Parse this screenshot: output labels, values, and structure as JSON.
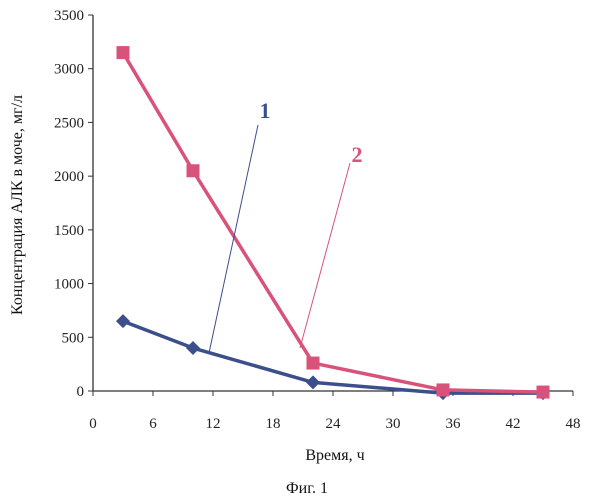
{
  "chart_data": {
    "type": "line",
    "caption": "Фиг. 1",
    "xlabel": "Время, ч",
    "ylabel": "Концентрация АЛК в моче, мг/л",
    "xlim": [
      0,
      48
    ],
    "ylim": [
      0,
      3500
    ],
    "xticks": [
      0,
      6,
      12,
      18,
      24,
      30,
      36,
      42,
      48
    ],
    "yticks": [
      0,
      500,
      1000,
      1500,
      2000,
      2500,
      3000,
      3500
    ],
    "grid": false,
    "legend": "none",
    "series": [
      {
        "label": "1",
        "color": "#3b4f8c",
        "marker": "diamond",
        "x": [
          3,
          10,
          22,
          35,
          45
        ],
        "y": [
          650,
          400,
          80,
          -20,
          -20
        ]
      },
      {
        "label": "2",
        "color": "#d9527a",
        "marker": "square",
        "x": [
          3,
          10,
          22,
          35,
          45
        ],
        "y": [
          3150,
          2050,
          260,
          10,
          -10
        ]
      }
    ]
  }
}
